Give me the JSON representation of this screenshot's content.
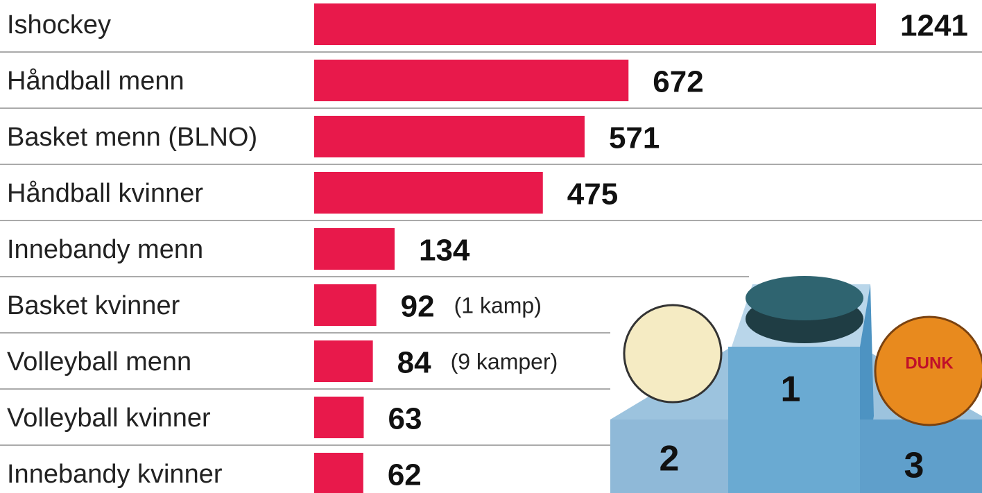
{
  "chart_data": {
    "type": "bar",
    "orientation": "horizontal",
    "categories": [
      "Ishockey",
      "Håndball menn",
      "Basket menn (BLNO)",
      "Håndball kvinner",
      "Innebandy menn",
      "Basket kvinner",
      "Volleyball menn",
      "Volleyball kvinner",
      "Innebandy kvinner"
    ],
    "values": [
      1241,
      672,
      571,
      475,
      134,
      92,
      84,
      63,
      62
    ],
    "notes": [
      null,
      null,
      null,
      null,
      null,
      "(1 kamp)",
      "(9 kamper)",
      null,
      null
    ],
    "color": "#e8194b",
    "xlim": [
      -51,
      1241
    ]
  },
  "podium": {
    "labels": [
      "1",
      "2",
      "3"
    ]
  }
}
